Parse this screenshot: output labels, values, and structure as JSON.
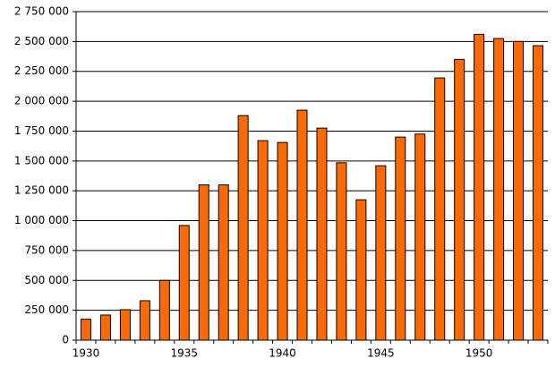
{
  "chart_data": {
    "type": "bar",
    "categories": [
      "1930",
      null,
      null,
      null,
      null,
      "1935",
      null,
      null,
      null,
      null,
      "1940",
      null,
      null,
      null,
      null,
      "1945",
      null,
      null,
      null,
      null,
      "1950",
      null,
      null,
      null
    ],
    "values": [
      175000,
      210000,
      255000,
      330000,
      500000,
      960000,
      1300000,
      1300000,
      1880000,
      1670000,
      1655000,
      1925000,
      1775000,
      1485000,
      1175000,
      1460000,
      1700000,
      1725000,
      2195000,
      2350000,
      2560000,
      2525000,
      2500000,
      2465000
    ],
    "color": "#ff6a00",
    "ylim": [
      0,
      2750000
    ],
    "yticks": [
      0,
      {
        "value": 250000,
        "label": "250 000"
      },
      {
        "value": 500000,
        "label": "500 000"
      },
      {
        "value": 750000,
        "label": "750 000"
      },
      {
        "value": 1000000,
        "label": "1 000 000"
      },
      {
        "value": 1250000,
        "label": "1 250 000"
      },
      {
        "value": 1500000,
        "label": "1 500 000"
      },
      {
        "value": 1750000,
        "label": "1 750 000"
      },
      {
        "value": 2000000,
        "label": "2 000 000"
      },
      {
        "value": 2250000,
        "label": "2 250 000"
      },
      {
        "value": 2500000,
        "label": "2 500 000"
      },
      {
        "value": 2750000,
        "label": "2 750 000"
      }
    ],
    "grid": true
  }
}
